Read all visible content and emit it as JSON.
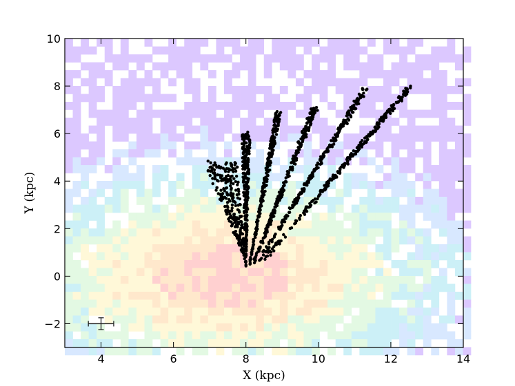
{
  "chart_data": {
    "type": "scatter",
    "xlabel": "X (kpc)",
    "ylabel": "Y (kpc)",
    "xlim": [
      3,
      14
    ],
    "ylim": [
      -3,
      10
    ],
    "xticks": [
      4,
      6,
      8,
      10,
      12,
      14
    ],
    "xtick_labels": [
      "4",
      "6",
      "8",
      "10",
      "12",
      "14"
    ],
    "yticks": [
      -2,
      0,
      2,
      4,
      6,
      8,
      10
    ],
    "ytick_labels": [
      "−2",
      "0",
      "2",
      "4",
      "6",
      "8",
      "10"
    ],
    "grid": false,
    "background_density": {
      "description_colormap": "pastel rainbow density map centered near the Sun",
      "peak": [
        7.5,
        0.0
      ],
      "colors": [
        "#ffd0d0",
        "#ffe8cc",
        "#fff8d8",
        "#e3f9e3",
        "#ccf0f7",
        "#d8e8ff",
        "#dcc8ff"
      ]
    },
    "point_color": "#000000",
    "series": [
      {
        "origin": [
          8.0,
          0.6
        ],
        "end": [
          7.3,
          4.8
        ],
        "spread": 0.45,
        "min_y": 0.4
      },
      {
        "origin": [
          8.0,
          0.4
        ],
        "end": [
          8.0,
          6.0
        ],
        "spread": 0.12,
        "min_y": 0.4
      },
      {
        "origin": [
          8.1,
          0.5
        ],
        "end": [
          8.9,
          6.9
        ],
        "spread": 0.08,
        "min_y": 0.5
      },
      {
        "origin": [
          8.2,
          0.5
        ],
        "end": [
          9.9,
          7.1
        ],
        "spread": 0.08,
        "min_y": 0.5
      },
      {
        "origin": [
          8.3,
          0.5
        ],
        "end": [
          11.3,
          7.9
        ],
        "spread": 0.07,
        "min_y": 0.5
      },
      {
        "origin": [
          8.4,
          0.5
        ],
        "end": [
          12.5,
          7.9
        ],
        "spread": 0.05,
        "min_y": 0.5
      }
    ],
    "error_bar": {
      "x": 4.0,
      "y": -2.0,
      "xerr": 0.35,
      "yerr": 0.25
    }
  }
}
